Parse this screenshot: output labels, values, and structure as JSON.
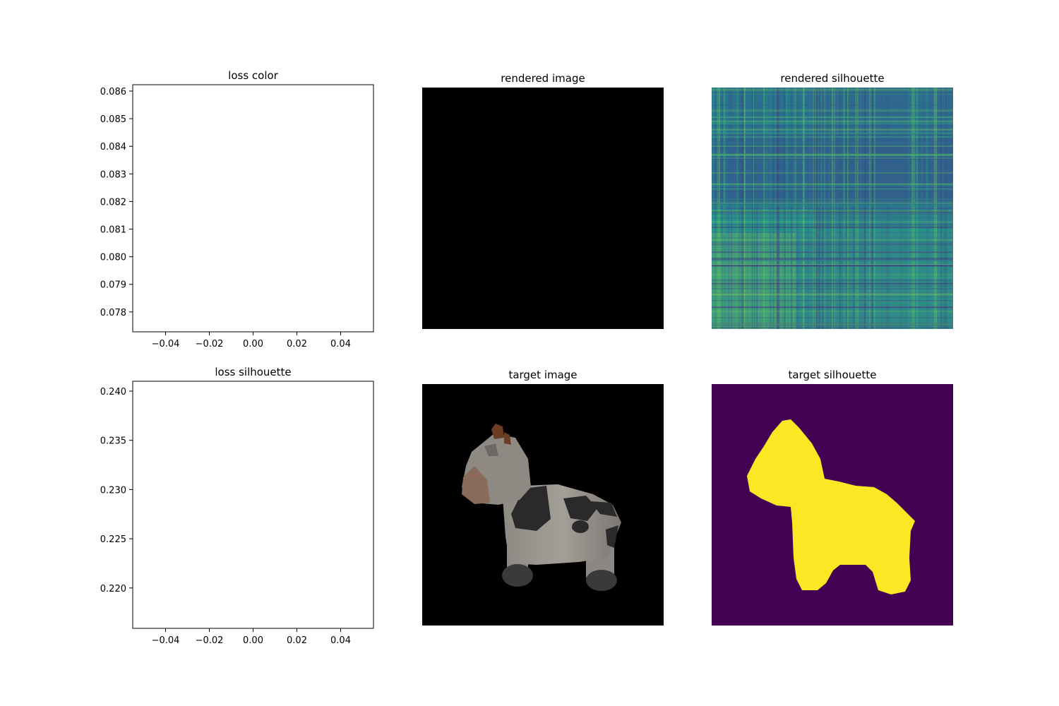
{
  "chart_data": [
    {
      "type": "line",
      "title": "loss color",
      "xlabel": "",
      "ylabel": "",
      "xlim": [
        -0.055,
        0.055
      ],
      "ylim": [
        0.07728,
        0.08623
      ],
      "x_ticks": [
        -0.04,
        -0.02,
        0.0,
        0.02,
        0.04
      ],
      "x_tick_labels": [
        "−0.04",
        "−0.02",
        "0.00",
        "0.02",
        "0.04"
      ],
      "y_ticks": [
        0.078,
        0.079,
        0.08,
        0.081,
        0.082,
        0.083,
        0.084,
        0.085,
        0.086
      ],
      "y_tick_labels": [
        "0.078",
        "0.079",
        "0.080",
        "0.081",
        "0.082",
        "0.083",
        "0.084",
        "0.085",
        "0.086"
      ],
      "series": [],
      "grid": false
    },
    {
      "type": "image",
      "title": "rendered image",
      "content": "black",
      "colors": {
        "fill": "#000000"
      }
    },
    {
      "type": "heatmap",
      "title": "rendered silhouette",
      "colormap": "viridis",
      "pattern": "noisy plaid"
    },
    {
      "type": "line",
      "title": "loss silhouette",
      "xlabel": "",
      "ylabel": "",
      "xlim": [
        -0.055,
        0.055
      ],
      "ylim": [
        0.2159,
        0.241
      ],
      "x_ticks": [
        -0.04,
        -0.02,
        0.0,
        0.02,
        0.04
      ],
      "x_tick_labels": [
        "−0.04",
        "−0.02",
        "0.00",
        "0.02",
        "0.04"
      ],
      "y_ticks": [
        0.22,
        0.225,
        0.23,
        0.235,
        0.24
      ],
      "y_tick_labels": [
        "0.220",
        "0.225",
        "0.230",
        "0.235",
        "0.240"
      ],
      "series": [],
      "grid": false
    },
    {
      "type": "image",
      "title": "target image",
      "content": "cow render on black background"
    },
    {
      "type": "image",
      "title": "target silhouette",
      "content": "cow silhouette mask",
      "colors": {
        "background": "#440154",
        "foreground": "#fde725"
      }
    }
  ]
}
